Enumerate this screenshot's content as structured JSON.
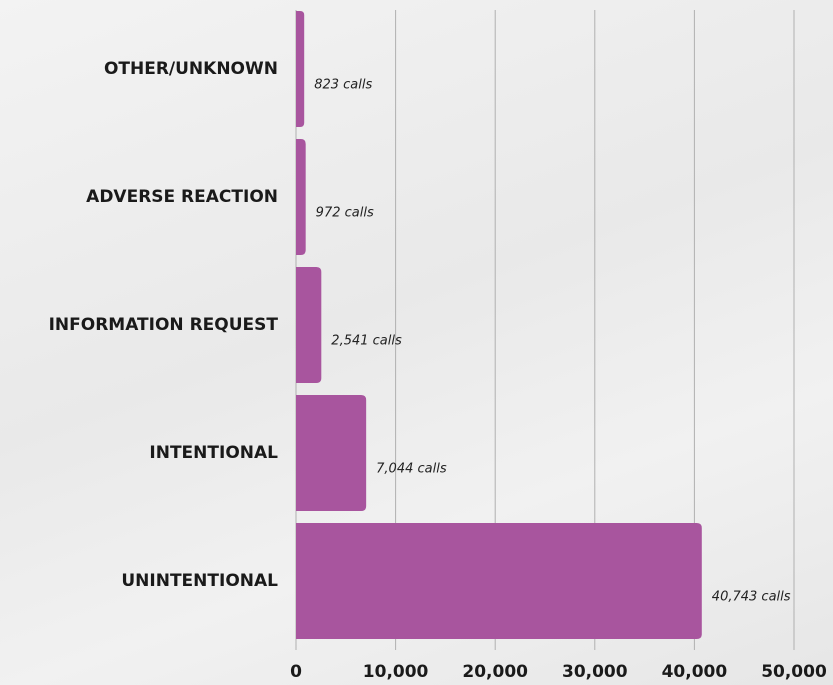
{
  "chart_data": {
    "type": "bar",
    "orientation": "horizontal",
    "categories": [
      "OTHER/UNKNOWN",
      "ADVERSE REACTION",
      "INFORMATION REQUEST",
      "INTENTIONAL",
      "UNINTENTIONAL"
    ],
    "values": [
      823,
      972,
      2541,
      7044,
      40743
    ],
    "value_labels": [
      "823 calls",
      "972 calls",
      "2,541 calls",
      "7,044 calls",
      "40,743 calls"
    ],
    "color": "#a8559e",
    "xlim": [
      0,
      50000
    ],
    "xticks": [
      0,
      {
        "value": 10000,
        "label": "10,000"
      },
      {
        "value": 20000,
        "label": "20,000"
      },
      {
        "value": 30000,
        "label": "30,000"
      },
      {
        "value": 40000,
        "label": "40,000"
      },
      {
        "value": 50000,
        "label": "50,000"
      }
    ],
    "grid": true
  }
}
